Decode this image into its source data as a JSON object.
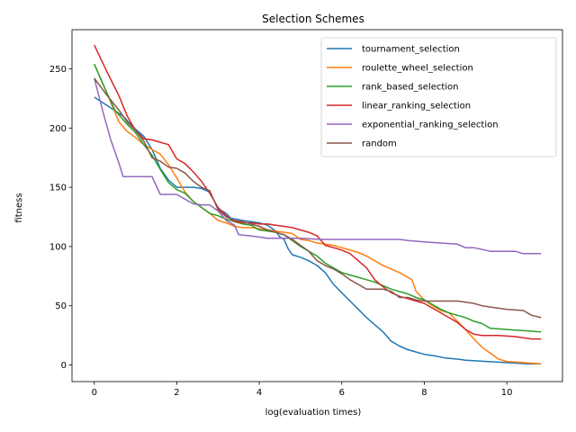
{
  "chart_data": {
    "type": "line",
    "title": "Selection Schemes",
    "xlabel": "log(evaluation times)",
    "ylabel": "fitness",
    "xlim": [
      -0.54,
      11.35
    ],
    "ylim": [
      -14,
      283
    ],
    "xticks": [
      0,
      2,
      4,
      6,
      8,
      10
    ],
    "yticks": [
      0,
      50,
      100,
      150,
      200,
      250
    ],
    "legend_position": "top-right",
    "grid": false,
    "series": [
      {
        "name": "tournament_selection",
        "color": "#1f77b4",
        "points": [
          [
            0,
            226
          ],
          [
            0.4,
            217
          ],
          [
            0.7,
            210
          ],
          [
            1.0,
            199
          ],
          [
            1.2,
            193
          ],
          [
            1.4,
            182
          ],
          [
            1.6,
            166
          ],
          [
            1.8,
            156
          ],
          [
            2.0,
            150
          ],
          [
            2.4,
            150
          ],
          [
            2.6,
            149
          ],
          [
            2.8,
            146
          ],
          [
            3.0,
            132
          ],
          [
            3.2,
            128
          ],
          [
            3.3,
            124
          ],
          [
            3.6,
            122
          ],
          [
            3.8,
            121
          ],
          [
            4.0,
            120
          ],
          [
            4.2,
            118
          ],
          [
            4.4,
            113
          ],
          [
            4.5,
            108
          ],
          [
            4.6,
            106
          ],
          [
            4.7,
            98
          ],
          [
            4.8,
            93
          ],
          [
            5.0,
            91
          ],
          [
            5.2,
            88
          ],
          [
            5.4,
            84
          ],
          [
            5.6,
            78
          ],
          [
            5.8,
            68
          ],
          [
            6.0,
            61
          ],
          [
            6.2,
            54
          ],
          [
            6.4,
            47
          ],
          [
            6.6,
            40
          ],
          [
            6.8,
            34
          ],
          [
            7.0,
            28
          ],
          [
            7.2,
            20
          ],
          [
            7.4,
            16
          ],
          [
            7.6,
            13
          ],
          [
            7.8,
            11
          ],
          [
            8.0,
            9
          ],
          [
            8.2,
            8
          ],
          [
            8.5,
            6
          ],
          [
            8.8,
            5
          ],
          [
            9.0,
            4
          ],
          [
            9.5,
            3
          ],
          [
            10.0,
            2
          ],
          [
            10.5,
            1
          ],
          [
            10.83,
            1
          ]
        ]
      },
      {
        "name": "roulette_wheel_selection",
        "color": "#ff7f0e",
        "points": [
          [
            0,
            254
          ],
          [
            0.3,
            230
          ],
          [
            0.6,
            205
          ],
          [
            0.8,
            197
          ],
          [
            1.0,
            192
          ],
          [
            1.2,
            186
          ],
          [
            1.4,
            182
          ],
          [
            1.6,
            178
          ],
          [
            1.8,
            169
          ],
          [
            2.0,
            158
          ],
          [
            2.2,
            146
          ],
          [
            2.4,
            138
          ],
          [
            2.6,
            133
          ],
          [
            2.8,
            128
          ],
          [
            3.0,
            122
          ],
          [
            3.2,
            120
          ],
          [
            3.4,
            117
          ],
          [
            3.6,
            116
          ],
          [
            3.8,
            116
          ],
          [
            4.0,
            115
          ],
          [
            4.2,
            114
          ],
          [
            4.4,
            113
          ],
          [
            4.6,
            112
          ],
          [
            4.8,
            111
          ],
          [
            5.0,
            106
          ],
          [
            5.2,
            105
          ],
          [
            5.4,
            103
          ],
          [
            5.6,
            102
          ],
          [
            5.8,
            101
          ],
          [
            6.0,
            99
          ],
          [
            6.2,
            97
          ],
          [
            6.4,
            95
          ],
          [
            6.6,
            92
          ],
          [
            6.8,
            88
          ],
          [
            7.0,
            84
          ],
          [
            7.2,
            81
          ],
          [
            7.4,
            78
          ],
          [
            7.6,
            74
          ],
          [
            7.7,
            72
          ],
          [
            7.8,
            62
          ],
          [
            8.0,
            55
          ],
          [
            8.2,
            50
          ],
          [
            8.4,
            46
          ],
          [
            8.6,
            44
          ],
          [
            8.8,
            37
          ],
          [
            9.0,
            30
          ],
          [
            9.2,
            22
          ],
          [
            9.4,
            15
          ],
          [
            9.6,
            10
          ],
          [
            9.8,
            5
          ],
          [
            10.0,
            3
          ],
          [
            10.4,
            2
          ],
          [
            10.83,
            1
          ]
        ]
      },
      {
        "name": "rank_based_selection",
        "color": "#2ca02c",
        "points": [
          [
            0,
            254
          ],
          [
            0.3,
            230
          ],
          [
            0.5,
            215
          ],
          [
            0.8,
            203
          ],
          [
            1.0,
            196
          ],
          [
            1.2,
            186
          ],
          [
            1.4,
            177
          ],
          [
            1.6,
            165
          ],
          [
            1.8,
            154
          ],
          [
            2.0,
            148
          ],
          [
            2.2,
            145
          ],
          [
            2.4,
            138
          ],
          [
            2.6,
            133
          ],
          [
            2.8,
            128
          ],
          [
            3.0,
            126
          ],
          [
            3.2,
            123
          ],
          [
            3.4,
            121
          ],
          [
            3.6,
            119
          ],
          [
            3.8,
            118
          ],
          [
            4.0,
            114
          ],
          [
            4.2,
            113
          ],
          [
            4.4,
            112
          ],
          [
            4.6,
            110
          ],
          [
            4.8,
            105
          ],
          [
            5.0,
            100
          ],
          [
            5.2,
            96
          ],
          [
            5.4,
            92
          ],
          [
            5.6,
            86
          ],
          [
            5.8,
            82
          ],
          [
            6.0,
            78
          ],
          [
            6.2,
            76
          ],
          [
            6.4,
            74
          ],
          [
            6.6,
            72
          ],
          [
            6.8,
            70
          ],
          [
            7.0,
            67
          ],
          [
            7.2,
            64
          ],
          [
            7.4,
            62
          ],
          [
            7.6,
            60
          ],
          [
            7.8,
            57
          ],
          [
            8.0,
            55
          ],
          [
            8.2,
            51
          ],
          [
            8.4,
            47
          ],
          [
            8.6,
            44
          ],
          [
            8.8,
            42
          ],
          [
            9.0,
            40
          ],
          [
            9.2,
            37
          ],
          [
            9.4,
            35
          ],
          [
            9.6,
            31
          ],
          [
            10.0,
            30
          ],
          [
            10.4,
            29
          ],
          [
            10.83,
            28
          ]
        ]
      },
      {
        "name": "linear_ranking_selection",
        "color": "#d62728",
        "points": [
          [
            0,
            270
          ],
          [
            0.3,
            248
          ],
          [
            0.6,
            227
          ],
          [
            0.8,
            210
          ],
          [
            1.0,
            198
          ],
          [
            1.2,
            191
          ],
          [
            1.4,
            190
          ],
          [
            1.6,
            188
          ],
          [
            1.8,
            186
          ],
          [
            2.0,
            174
          ],
          [
            2.2,
            170
          ],
          [
            2.4,
            163
          ],
          [
            2.6,
            155
          ],
          [
            2.8,
            145
          ],
          [
            3.0,
            133
          ],
          [
            3.2,
            126
          ],
          [
            3.4,
            121
          ],
          [
            3.6,
            120
          ],
          [
            3.8,
            120
          ],
          [
            4.0,
            119
          ],
          [
            4.2,
            119
          ],
          [
            4.4,
            118
          ],
          [
            4.6,
            117
          ],
          [
            4.8,
            116
          ],
          [
            5.0,
            114
          ],
          [
            5.2,
            112
          ],
          [
            5.4,
            109
          ],
          [
            5.6,
            101
          ],
          [
            5.8,
            99
          ],
          [
            6.0,
            97
          ],
          [
            6.2,
            94
          ],
          [
            6.4,
            88
          ],
          [
            6.6,
            82
          ],
          [
            6.8,
            72
          ],
          [
            7.0,
            66
          ],
          [
            7.2,
            61
          ],
          [
            7.4,
            58
          ],
          [
            7.6,
            56
          ],
          [
            7.8,
            54
          ],
          [
            8.0,
            52
          ],
          [
            8.2,
            48
          ],
          [
            8.4,
            44
          ],
          [
            8.6,
            40
          ],
          [
            8.8,
            36
          ],
          [
            9.0,
            30
          ],
          [
            9.2,
            26
          ],
          [
            9.4,
            25
          ],
          [
            9.8,
            25
          ],
          [
            10.2,
            24
          ],
          [
            10.6,
            22
          ],
          [
            10.83,
            22
          ]
        ]
      },
      {
        "name": "exponential_ranking_selection",
        "color": "#9467bd",
        "points": [
          [
            0,
            242
          ],
          [
            0.2,
            215
          ],
          [
            0.4,
            190
          ],
          [
            0.6,
            170
          ],
          [
            0.7,
            159
          ],
          [
            1.0,
            159
          ],
          [
            1.4,
            159
          ],
          [
            1.6,
            144
          ],
          [
            1.8,
            144
          ],
          [
            2.0,
            144
          ],
          [
            2.2,
            140
          ],
          [
            2.4,
            136
          ],
          [
            2.6,
            135
          ],
          [
            2.8,
            135
          ],
          [
            3.0,
            130
          ],
          [
            3.2,
            122
          ],
          [
            3.4,
            118
          ],
          [
            3.5,
            110
          ],
          [
            3.8,
            109
          ],
          [
            4.0,
            108
          ],
          [
            4.2,
            107
          ],
          [
            4.4,
            107
          ],
          [
            5.0,
            107
          ],
          [
            5.5,
            106
          ],
          [
            6.0,
            106
          ],
          [
            6.5,
            106
          ],
          [
            7.0,
            106
          ],
          [
            7.4,
            106
          ],
          [
            7.6,
            105
          ],
          [
            8.0,
            104
          ],
          [
            8.4,
            103
          ],
          [
            8.8,
            102
          ],
          [
            9.0,
            99
          ],
          [
            9.2,
            99
          ],
          [
            9.6,
            96
          ],
          [
            10.0,
            96
          ],
          [
            10.2,
            96
          ],
          [
            10.4,
            94
          ],
          [
            10.83,
            94
          ]
        ]
      },
      {
        "name": "random",
        "color": "#8c564b",
        "points": [
          [
            0,
            242
          ],
          [
            0.3,
            228
          ],
          [
            0.6,
            215
          ],
          [
            0.8,
            205
          ],
          [
            1.0,
            198
          ],
          [
            1.2,
            189
          ],
          [
            1.4,
            175
          ],
          [
            1.6,
            172
          ],
          [
            1.8,
            167
          ],
          [
            2.0,
            166
          ],
          [
            2.2,
            162
          ],
          [
            2.4,
            155
          ],
          [
            2.6,
            150
          ],
          [
            2.8,
            147
          ],
          [
            3.0,
            131
          ],
          [
            3.2,
            125
          ],
          [
            3.4,
            122
          ],
          [
            3.6,
            121
          ],
          [
            3.8,
            119
          ],
          [
            4.0,
            117
          ],
          [
            4.2,
            114
          ],
          [
            4.4,
            112
          ],
          [
            4.6,
            110
          ],
          [
            4.8,
            106
          ],
          [
            5.0,
            101
          ],
          [
            5.2,
            96
          ],
          [
            5.4,
            88
          ],
          [
            5.6,
            84
          ],
          [
            5.8,
            81
          ],
          [
            6.0,
            77
          ],
          [
            6.2,
            72
          ],
          [
            6.4,
            68
          ],
          [
            6.6,
            64
          ],
          [
            6.8,
            64
          ],
          [
            7.0,
            64
          ],
          [
            7.2,
            62
          ],
          [
            7.4,
            57
          ],
          [
            7.6,
            57
          ],
          [
            7.8,
            55
          ],
          [
            8.0,
            54
          ],
          [
            8.4,
            54
          ],
          [
            8.8,
            54
          ],
          [
            9.0,
            53
          ],
          [
            9.2,
            52
          ],
          [
            9.4,
            50
          ],
          [
            9.6,
            49
          ],
          [
            10.0,
            47
          ],
          [
            10.4,
            46
          ],
          [
            10.6,
            42
          ],
          [
            10.83,
            40
          ]
        ]
      }
    ]
  }
}
